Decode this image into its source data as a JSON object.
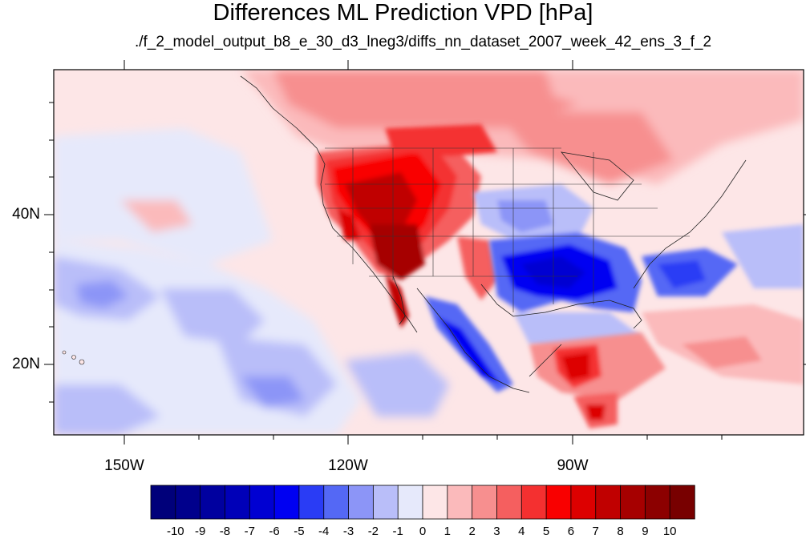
{
  "title": "Differences ML Prediction VPD [hPa]",
  "subtitle": "./f_2_model_output_b8_e_30_d3_lneg3/diffs_nn_dataset_2007_week_42_ens_3_f_2",
  "axes": {
    "lat_labels": [
      "40N",
      "20N"
    ],
    "lon_labels": [
      "150W",
      "120W",
      "90W"
    ]
  },
  "colorbar": {
    "labels": [
      "-10",
      "-9",
      "-8",
      "-7",
      "-6",
      "-5",
      "-4",
      "-3",
      "-2",
      "-1",
      "0",
      "1",
      "2",
      "3",
      "4",
      "5",
      "6",
      "7",
      "8",
      "9",
      "10"
    ],
    "colors": [
      "#00007a",
      "#00008c",
      "#00009f",
      "#0000b8",
      "#0000d2",
      "#0000f2",
      "#2a3cf5",
      "#5468f5",
      "#8c95f7",
      "#b9bef9",
      "#e6e9fb",
      "#fde6e7",
      "#fbbabb",
      "#f78f8f",
      "#f55f5f",
      "#f43030",
      "#f90000",
      "#dd0000",
      "#c00000",
      "#a60000",
      "#8c0000",
      "#780000"
    ]
  },
  "map": {
    "region": "North America and eastern Pacific",
    "projection": "cylindrical equidistant",
    "field": "VPD difference (hPa)"
  }
}
